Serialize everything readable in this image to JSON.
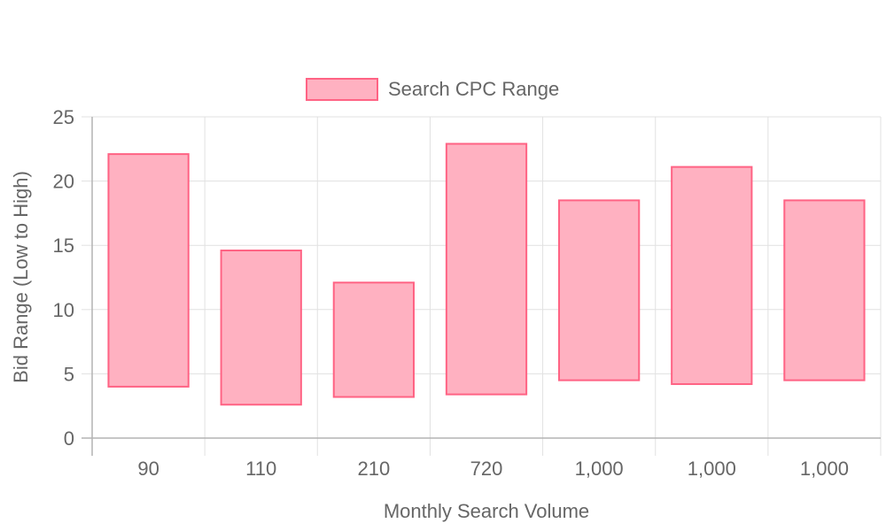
{
  "chart_data": {
    "type": "bar",
    "subtype": "floating-range",
    "categories": [
      "90",
      "110",
      "210",
      "720",
      "1,000",
      "1,000",
      "1,000"
    ],
    "series": [
      {
        "name": "Search CPC Range",
        "low": [
          4.0,
          2.6,
          3.2,
          3.4,
          4.5,
          4.2,
          4.5
        ],
        "high": [
          22.1,
          14.6,
          12.1,
          22.9,
          18.5,
          21.1,
          18.5
        ]
      }
    ],
    "xlabel": "Monthly Search Volume",
    "ylabel": "Bid Range (Low to High)",
    "ylim": [
      0,
      25
    ],
    "yticks": [
      "0",
      "5",
      "10",
      "15",
      "20",
      "25"
    ],
    "grid": true,
    "legend_position": "top-center",
    "colors": {
      "bar_fill": "#ffb1c1",
      "bar_border": "#ff6384",
      "grid": "#e1e1e1",
      "axis": "#b3b3b3",
      "text": "#666666"
    }
  }
}
